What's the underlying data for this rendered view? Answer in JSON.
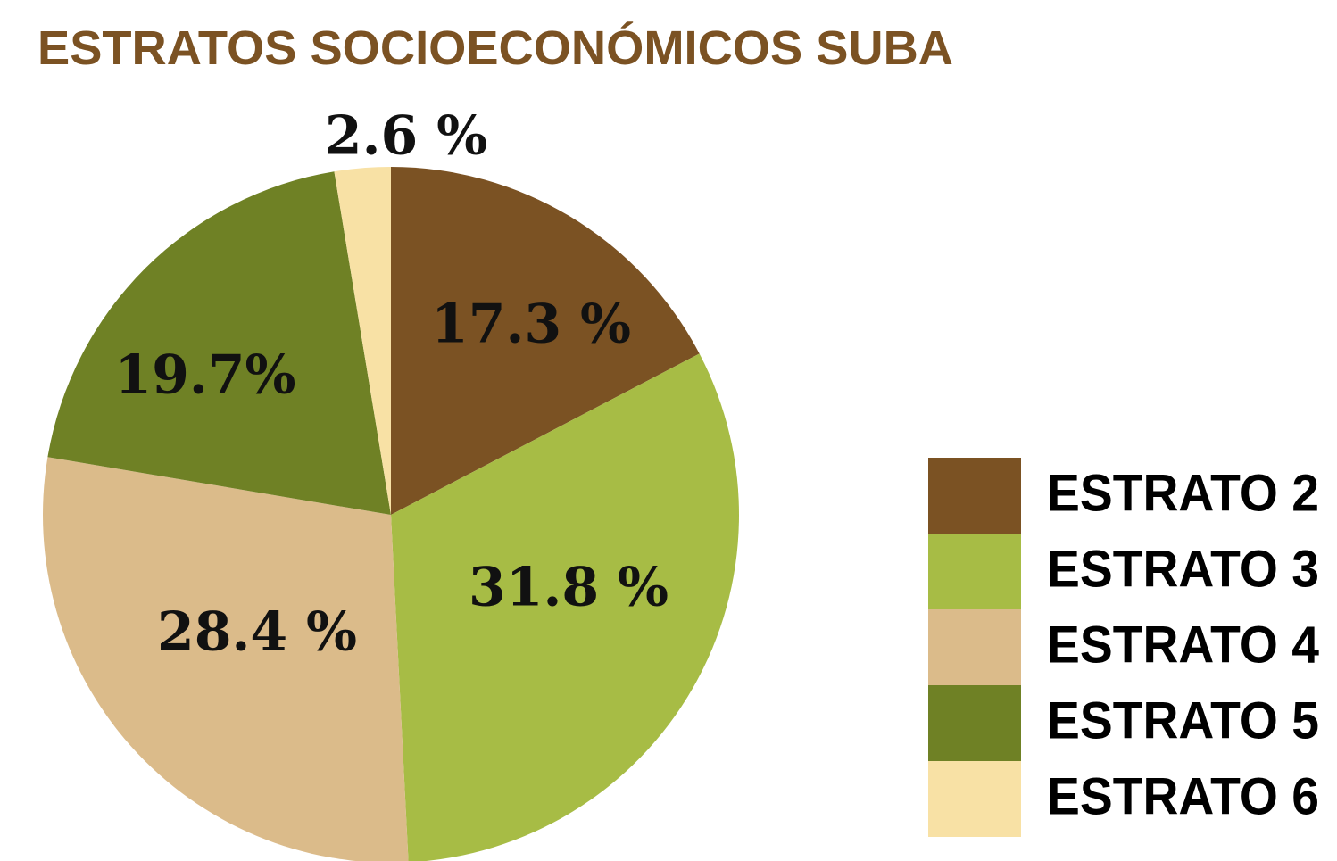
{
  "chart_data": {
    "type": "pie",
    "title": "ESTRATOS SOCIOECONÓMICOS SUBA",
    "categories": [
      "ESTRATO 2",
      "ESTRATO 3",
      "ESTRATO 4",
      "ESTRATO 5",
      "ESTRATO 6"
    ],
    "values": [
      17.3,
      31.8,
      28.4,
      19.7,
      2.6
    ],
    "value_labels": [
      "17.3 %",
      "31.8 %",
      "28.4 %",
      "19.7%",
      "2.6 %"
    ],
    "colors": [
      "#7b5223",
      "#a7bc45",
      "#dbbb8a",
      "#6f8125",
      "#f8e1a5"
    ],
    "legend": "right"
  }
}
